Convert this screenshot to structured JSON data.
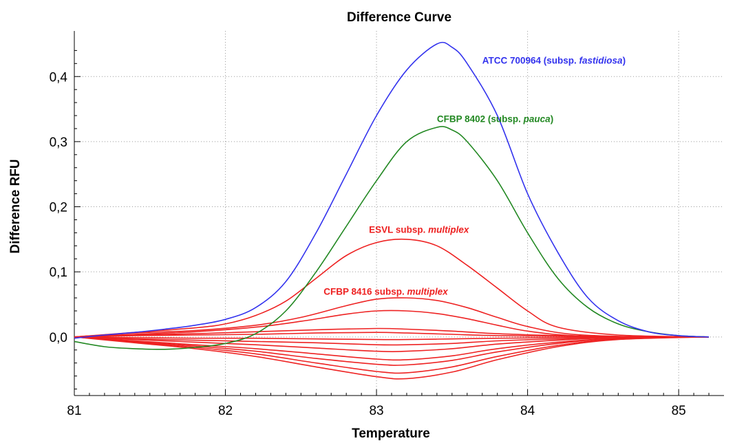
{
  "chart_data": {
    "type": "line",
    "title": "Difference Curve",
    "xlabel": "Temperature",
    "ylabel": "Difference RFU",
    "xlim": [
      81,
      85.3
    ],
    "ylim": [
      -0.09,
      0.47
    ],
    "xticks": [
      81,
      82,
      83,
      84,
      85
    ],
    "xtick_labels": [
      "81",
      "82",
      "83",
      "84",
      "85"
    ],
    "yticks": [
      0.0,
      0.1,
      0.2,
      0.3,
      0.4
    ],
    "ytick_labels": [
      "0,0",
      "0,1",
      "0,2",
      "0,3",
      "0,4"
    ],
    "grid": true,
    "annotations": [
      {
        "text": "ATCC 700964 (subsp. ",
        "italic": "fastidiosa",
        "tail": ")",
        "color": "#3333ee",
        "x": 83.7,
        "y": 0.42
      },
      {
        "text": "CFBP 8402 (subsp. ",
        "italic": "pauca",
        "tail": ")",
        "color": "#228822",
        "x": 83.4,
        "y": 0.33
      },
      {
        "text": "ESVL subsp. ",
        "italic": "multiplex",
        "tail": "",
        "color": "#ee2222",
        "x": 82.95,
        "y": 0.16
      },
      {
        "text": "CFBP 8416 subsp. ",
        "italic": "multiplex",
        "tail": "",
        "color": "#ee2222",
        "x": 82.65,
        "y": 0.065
      }
    ],
    "series": [
      {
        "color": "#3333ee",
        "x": [
          81.0,
          81.2,
          81.4,
          81.6,
          81.8,
          82.0,
          82.2,
          82.4,
          82.6,
          82.8,
          83.0,
          83.2,
          83.4,
          83.5,
          83.6,
          83.8,
          84.0,
          84.2,
          84.4,
          84.6,
          84.8,
          85.0,
          85.2
        ],
        "y": [
          -0.002,
          0.003,
          0.007,
          0.012,
          0.018,
          0.027,
          0.045,
          0.085,
          0.16,
          0.25,
          0.34,
          0.41,
          0.45,
          0.445,
          0.42,
          0.34,
          0.22,
          0.13,
          0.06,
          0.025,
          0.008,
          0.002,
          0.0
        ]
      },
      {
        "color": "#228822",
        "x": [
          81.0,
          81.2,
          81.4,
          81.6,
          81.8,
          82.0,
          82.2,
          82.4,
          82.6,
          82.8,
          83.0,
          83.2,
          83.4,
          83.5,
          83.6,
          83.8,
          84.0,
          84.2,
          84.4,
          84.6,
          84.8,
          85.0,
          85.2
        ],
        "y": [
          -0.007,
          -0.015,
          -0.018,
          -0.019,
          -0.016,
          -0.01,
          0.005,
          0.04,
          0.1,
          0.17,
          0.24,
          0.3,
          0.322,
          0.318,
          0.3,
          0.24,
          0.16,
          0.09,
          0.045,
          0.02,
          0.008,
          0.002,
          0.0
        ]
      },
      {
        "color": "#ee2222",
        "x": [
          81.0,
          81.4,
          81.8,
          82.0,
          82.2,
          82.4,
          82.6,
          82.8,
          83.0,
          83.2,
          83.4,
          83.6,
          83.8,
          84.0,
          84.2,
          84.6,
          85.2
        ],
        "y": [
          0.0,
          0.007,
          0.014,
          0.02,
          0.033,
          0.055,
          0.09,
          0.125,
          0.145,
          0.15,
          0.14,
          0.11,
          0.075,
          0.04,
          0.015,
          0.003,
          0.0
        ]
      },
      {
        "color": "#ee2222",
        "x": [
          81.0,
          81.4,
          81.8,
          82.2,
          82.5,
          82.8,
          83.0,
          83.2,
          83.4,
          83.6,
          83.8,
          84.0,
          84.3,
          84.8,
          85.2
        ],
        "y": [
          0.0,
          0.006,
          0.01,
          0.018,
          0.03,
          0.048,
          0.058,
          0.06,
          0.056,
          0.045,
          0.03,
          0.016,
          0.004,
          0.0,
          0.0
        ]
      },
      {
        "color": "#ee2222",
        "x": [
          81.0,
          81.4,
          81.8,
          82.2,
          82.5,
          82.8,
          83.0,
          83.2,
          83.4,
          83.6,
          83.8,
          84.0,
          84.3,
          84.8,
          85.2
        ],
        "y": [
          0.0,
          0.004,
          0.008,
          0.015,
          0.024,
          0.035,
          0.04,
          0.04,
          0.036,
          0.028,
          0.018,
          0.009,
          0.002,
          0.0,
          0.0
        ]
      },
      {
        "color": "#ee2222",
        "x": [
          81.0,
          81.4,
          81.8,
          82.2,
          82.6,
          83.0,
          83.2,
          83.5,
          83.8,
          84.2,
          84.6,
          85.2
        ],
        "y": [
          0.0,
          0.003,
          0.005,
          0.008,
          0.011,
          0.013,
          0.012,
          0.009,
          0.005,
          0.002,
          0.0,
          0.0
        ]
      },
      {
        "color": "#ee2222",
        "x": [
          81.0,
          81.4,
          81.8,
          82.2,
          82.6,
          83.0,
          83.2,
          83.5,
          83.8,
          84.2,
          84.6,
          85.2
        ],
        "y": [
          0.0,
          0.002,
          0.003,
          0.004,
          0.006,
          0.007,
          0.006,
          0.004,
          0.002,
          0.001,
          0.0,
          0.0
        ]
      },
      {
        "color": "#ee2222",
        "x": [
          81.0,
          81.4,
          81.8,
          82.2,
          82.6,
          83.0,
          83.2,
          83.5,
          83.8,
          84.2,
          84.6,
          85.2
        ],
        "y": [
          0.0,
          -0.001,
          -0.002,
          -0.002,
          -0.003,
          -0.004,
          -0.004,
          -0.003,
          -0.002,
          -0.001,
          0.0,
          0.0
        ]
      },
      {
        "color": "#ee2222",
        "x": [
          81.0,
          81.4,
          81.8,
          82.2,
          82.6,
          83.0,
          83.2,
          83.5,
          83.8,
          84.2,
          84.6,
          85.2
        ],
        "y": [
          0.0,
          -0.003,
          -0.005,
          -0.007,
          -0.009,
          -0.012,
          -0.012,
          -0.01,
          -0.006,
          -0.003,
          -0.001,
          0.0
        ]
      },
      {
        "color": "#ee2222",
        "x": [
          81.0,
          81.4,
          81.8,
          82.2,
          82.6,
          83.0,
          83.2,
          83.5,
          83.8,
          84.2,
          84.6,
          85.2
        ],
        "y": [
          0.0,
          -0.004,
          -0.008,
          -0.012,
          -0.017,
          -0.022,
          -0.022,
          -0.018,
          -0.011,
          -0.005,
          -0.001,
          0.0
        ]
      },
      {
        "color": "#ee2222",
        "x": [
          81.0,
          81.4,
          81.8,
          82.2,
          82.6,
          83.0,
          83.2,
          83.5,
          83.8,
          84.2,
          84.6,
          85.2
        ],
        "y": [
          0.0,
          -0.006,
          -0.012,
          -0.018,
          -0.026,
          -0.034,
          -0.035,
          -0.029,
          -0.018,
          -0.008,
          -0.002,
          0.0
        ]
      },
      {
        "color": "#ee2222",
        "x": [
          81.0,
          81.4,
          81.8,
          82.2,
          82.6,
          83.0,
          83.2,
          83.5,
          83.8,
          84.2,
          84.6,
          85.2
        ],
        "y": [
          0.0,
          -0.007,
          -0.014,
          -0.022,
          -0.033,
          -0.042,
          -0.043,
          -0.036,
          -0.023,
          -0.01,
          -0.002,
          0.0
        ]
      },
      {
        "color": "#ee2222",
        "x": [
          81.0,
          81.4,
          81.8,
          82.2,
          82.6,
          83.0,
          83.2,
          83.5,
          83.8,
          84.2,
          84.6,
          85.2
        ],
        "y": [
          0.0,
          -0.008,
          -0.016,
          -0.026,
          -0.04,
          -0.053,
          -0.055,
          -0.046,
          -0.03,
          -0.013,
          -0.003,
          0.0
        ]
      },
      {
        "color": "#ee2222",
        "x": [
          81.0,
          81.4,
          81.8,
          82.2,
          82.6,
          83.0,
          83.2,
          83.5,
          83.8,
          84.2,
          84.6,
          85.2
        ],
        "y": [
          0.0,
          -0.009,
          -0.018,
          -0.03,
          -0.046,
          -0.061,
          -0.064,
          -0.054,
          -0.035,
          -0.015,
          -0.004,
          0.0
        ]
      }
    ]
  }
}
